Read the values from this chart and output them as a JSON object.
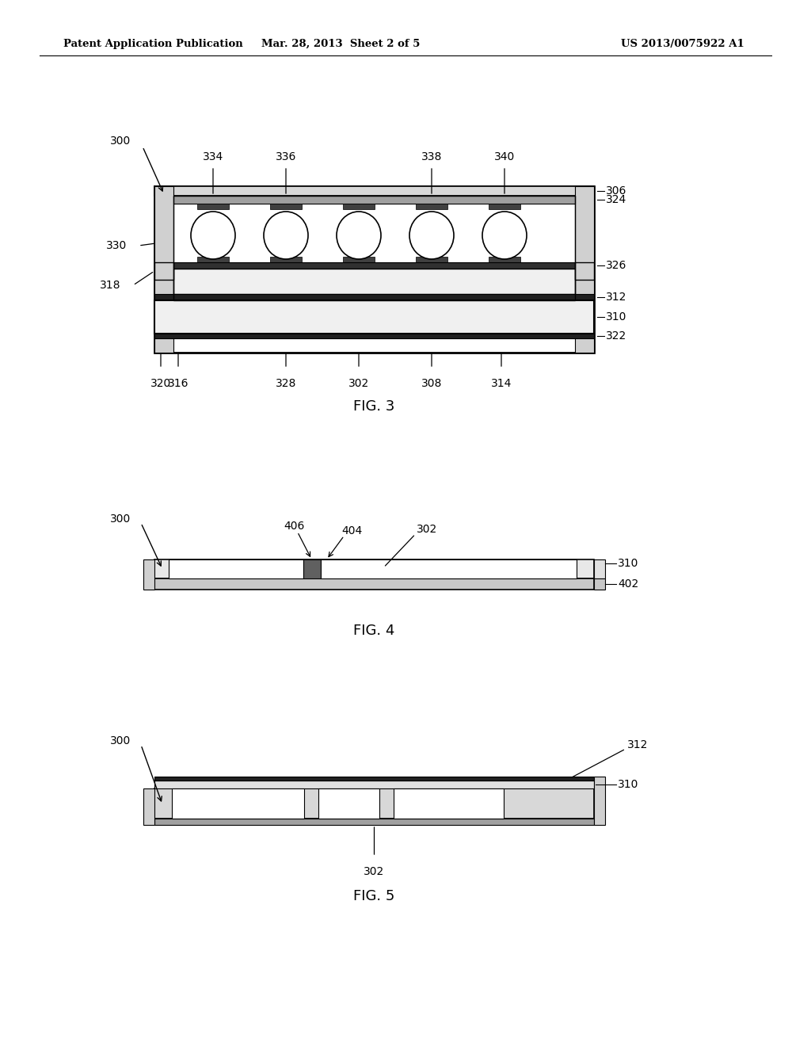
{
  "bg_color": "#ffffff",
  "header_left": "Patent Application Publication",
  "header_mid": "Mar. 28, 2013  Sheet 2 of 5",
  "header_right": "US 2013/0075922 A1",
  "fig3_label": "FIG. 3",
  "fig4_label": "FIG. 4",
  "fig5_label": "FIG. 5"
}
